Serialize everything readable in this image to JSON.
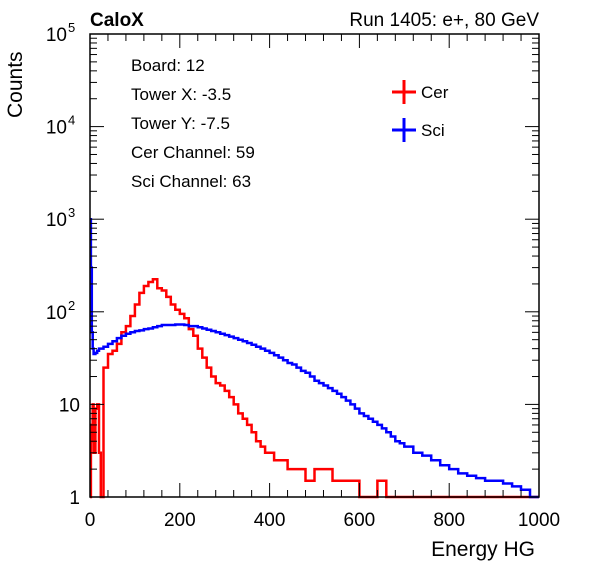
{
  "header": {
    "left": "CaloX",
    "right": "Run 1405: e+, 80 GeV"
  },
  "info_box": [
    "Board: 12",
    "Tower X: -3.5",
    "Tower Y: -7.5",
    "Cer Channel: 59",
    "Sci Channel: 63"
  ],
  "chart_data": {
    "type": "line",
    "style": "histogram",
    "xlabel": "Energy HG",
    "ylabel": "Counts",
    "xlim": [
      0,
      1000
    ],
    "ylim": [
      1,
      100000
    ],
    "y_scale": "log",
    "x_ticks": [
      "0",
      "200",
      "400",
      "600",
      "800",
      "1000"
    ],
    "y_ticks": [
      {
        "base": "1",
        "exp": ""
      },
      {
        "base": "10",
        "exp": ""
      },
      {
        "base": "10",
        "exp": "2"
      },
      {
        "base": "10",
        "exp": "3"
      },
      {
        "base": "10",
        "exp": "4"
      },
      {
        "base": "10",
        "exp": "5"
      }
    ],
    "legend_position": "top-right",
    "series": [
      {
        "name": "Cer",
        "color": "#ff0000",
        "x": [
          0,
          2,
          4,
          6,
          8,
          12,
          16,
          20,
          24,
          30,
          40,
          50,
          60,
          70,
          80,
          90,
          100,
          110,
          120,
          130,
          140,
          150,
          160,
          170,
          180,
          190,
          200,
          210,
          220,
          230,
          240,
          250,
          260,
          270,
          280,
          290,
          300,
          310,
          320,
          330,
          340,
          350,
          360,
          370,
          380,
          390,
          400,
          410,
          420,
          430,
          440,
          450,
          460,
          470,
          480,
          490,
          500,
          520,
          540,
          560,
          580,
          600,
          620,
          640,
          660,
          680,
          700,
          740,
          780,
          820,
          860,
          900,
          940,
          980
        ],
        "y": [
          1,
          4,
          6,
          10,
          3,
          9,
          10,
          3,
          1,
          25,
          35,
          38,
          45,
          60,
          70,
          90,
          120,
          160,
          190,
          210,
          225,
          180,
          170,
          145,
          120,
          105,
          95,
          85,
          65,
          55,
          40,
          32,
          25,
          20,
          17,
          16,
          14,
          12,
          10,
          8,
          7,
          6,
          5,
          4,
          3.5,
          3,
          3,
          2.5,
          2.5,
          2.5,
          2,
          2,
          2,
          2,
          1.5,
          1.5,
          2,
          2,
          1.5,
          1.5,
          1.5,
          1,
          1,
          1.5,
          1,
          1,
          1,
          1,
          1,
          1,
          1,
          1,
          1,
          1
        ]
      },
      {
        "name": "Sci",
        "color": "#0000ff",
        "x": [
          0,
          2,
          4,
          6,
          8,
          12,
          16,
          20,
          30,
          40,
          50,
          60,
          70,
          80,
          90,
          100,
          110,
          120,
          130,
          140,
          150,
          160,
          170,
          180,
          190,
          200,
          210,
          220,
          230,
          240,
          250,
          260,
          270,
          280,
          290,
          300,
          310,
          320,
          330,
          340,
          350,
          360,
          370,
          380,
          390,
          400,
          410,
          420,
          430,
          440,
          450,
          460,
          470,
          480,
          490,
          500,
          510,
          520,
          530,
          540,
          550,
          560,
          570,
          580,
          590,
          600,
          610,
          620,
          630,
          640,
          650,
          660,
          670,
          680,
          690,
          700,
          720,
          740,
          760,
          780,
          800,
          820,
          840,
          860,
          880,
          900,
          920,
          940,
          960,
          980,
          1000
        ],
        "y": [
          1000,
          300,
          60,
          40,
          35,
          36,
          38,
          40,
          42,
          45,
          48,
          52,
          55,
          58,
          60,
          62,
          63,
          65,
          66,
          68,
          70,
          72,
          72,
          72,
          73,
          73,
          72,
          70,
          70,
          68,
          66,
          64,
          62,
          60,
          58,
          56,
          54,
          52,
          50,
          48,
          46,
          44,
          42,
          40,
          38,
          36,
          34,
          32,
          30,
          28,
          27,
          25,
          23,
          22,
          20,
          18,
          17,
          16,
          15,
          14,
          13,
          12,
          11,
          10,
          9,
          8,
          7.5,
          7,
          6.5,
          6,
          5.5,
          5,
          4.5,
          4,
          3.8,
          3.5,
          3,
          2.8,
          2.5,
          2.2,
          2,
          1.8,
          1.7,
          1.6,
          1.5,
          1.5,
          1.4,
          1.3,
          1.2,
          1,
          1
        ]
      }
    ]
  }
}
